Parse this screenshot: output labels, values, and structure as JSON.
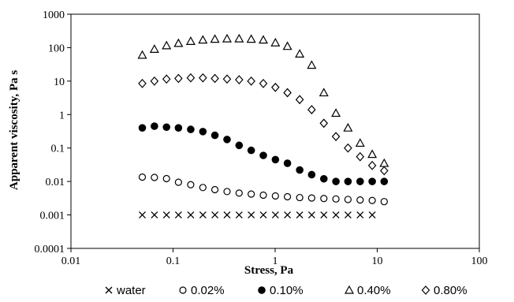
{
  "chart_data": {
    "type": "scatter",
    "title": "",
    "xlabel": "Stress, Pa",
    "ylabel": "Apparent viscosity,  Pa s",
    "xscale": "log",
    "yscale": "log",
    "xlim": [
      0.01,
      100
    ],
    "ylim": [
      0.0001,
      1000
    ],
    "x_ticks": [
      "0.01",
      "0.1",
      "1",
      "10",
      "100"
    ],
    "y_ticks": [
      "0.0001",
      "0.001",
      "0.01",
      "0.1",
      "1",
      "10",
      "100",
      "1000"
    ],
    "grid": false,
    "legend_position": "bottom",
    "series": [
      {
        "name": "water",
        "marker": "cross",
        "color": "#000000",
        "points": [
          [
            0.05,
            0.001
          ],
          [
            0.0657,
            0.001
          ],
          [
            0.0863,
            0.001
          ],
          [
            0.113,
            0.001
          ],
          [
            0.149,
            0.001
          ],
          [
            0.196,
            0.001
          ],
          [
            0.257,
            0.001
          ],
          [
            0.338,
            0.001
          ],
          [
            0.444,
            0.001
          ],
          [
            0.583,
            0.001
          ],
          [
            0.766,
            0.001
          ],
          [
            1.006,
            0.001
          ],
          [
            1.32,
            0.001
          ],
          [
            1.74,
            0.001
          ],
          [
            2.28,
            0.001
          ],
          [
            3.0,
            0.001
          ],
          [
            3.94,
            0.001
          ],
          [
            5.17,
            0.001
          ],
          [
            6.8,
            0.001
          ],
          [
            8.93,
            0.001
          ]
        ]
      },
      {
        "name": "0.02%",
        "marker": "circle-open",
        "color": "#000000",
        "points": [
          [
            0.05,
            0.0135
          ],
          [
            0.0657,
            0.0132
          ],
          [
            0.0863,
            0.0122
          ],
          [
            0.113,
            0.0095
          ],
          [
            0.149,
            0.008
          ],
          [
            0.196,
            0.0066
          ],
          [
            0.257,
            0.0057
          ],
          [
            0.338,
            0.005
          ],
          [
            0.444,
            0.0045
          ],
          [
            0.583,
            0.0042
          ],
          [
            0.766,
            0.0039
          ],
          [
            1.006,
            0.0037
          ],
          [
            1.32,
            0.0035
          ],
          [
            1.74,
            0.0033
          ],
          [
            2.28,
            0.0032
          ],
          [
            3.0,
            0.0031
          ],
          [
            3.94,
            0.003
          ],
          [
            5.17,
            0.0029
          ],
          [
            6.8,
            0.0028
          ],
          [
            8.93,
            0.0027
          ],
          [
            11.7,
            0.0025
          ]
        ]
      },
      {
        "name": "0.10%",
        "marker": "circle-filled",
        "color": "#000000",
        "points": [
          [
            0.05,
            0.4
          ],
          [
            0.0657,
            0.45
          ],
          [
            0.0863,
            0.42
          ],
          [
            0.113,
            0.4
          ],
          [
            0.149,
            0.36
          ],
          [
            0.196,
            0.31
          ],
          [
            0.257,
            0.24
          ],
          [
            0.338,
            0.18
          ],
          [
            0.444,
            0.12
          ],
          [
            0.583,
            0.085
          ],
          [
            0.766,
            0.06
          ],
          [
            1.006,
            0.045
          ],
          [
            1.32,
            0.035
          ],
          [
            1.74,
            0.022
          ],
          [
            2.28,
            0.016
          ],
          [
            3.0,
            0.012
          ],
          [
            3.94,
            0.01
          ],
          [
            5.17,
            0.01
          ],
          [
            6.8,
            0.01
          ],
          [
            8.93,
            0.01
          ],
          [
            11.7,
            0.01
          ]
        ]
      },
      {
        "name": "0.40%",
        "marker": "triangle-open",
        "color": "#000000",
        "points": [
          [
            0.05,
            60
          ],
          [
            0.0657,
            90
          ],
          [
            0.0863,
            115
          ],
          [
            0.113,
            135
          ],
          [
            0.149,
            155
          ],
          [
            0.196,
            170
          ],
          [
            0.257,
            180
          ],
          [
            0.338,
            185
          ],
          [
            0.444,
            185
          ],
          [
            0.583,
            180
          ],
          [
            0.766,
            170
          ],
          [
            1.006,
            140
          ],
          [
            1.32,
            110
          ],
          [
            1.74,
            65
          ],
          [
            2.28,
            30
          ],
          [
            3.0,
            4.5
          ],
          [
            3.94,
            1.1
          ],
          [
            5.17,
            0.4
          ],
          [
            6.8,
            0.14
          ],
          [
            8.93,
            0.065
          ],
          [
            11.7,
            0.035
          ]
        ]
      },
      {
        "name": "0.80%",
        "marker": "diamond-open",
        "color": "#000000",
        "points": [
          [
            0.05,
            8.5
          ],
          [
            0.0657,
            10
          ],
          [
            0.0863,
            11.5
          ],
          [
            0.113,
            12
          ],
          [
            0.149,
            12.5
          ],
          [
            0.196,
            12.5
          ],
          [
            0.257,
            12
          ],
          [
            0.338,
            11.5
          ],
          [
            0.444,
            11
          ],
          [
            0.583,
            10
          ],
          [
            0.766,
            8.5
          ],
          [
            1.006,
            6.5
          ],
          [
            1.32,
            4.5
          ],
          [
            1.74,
            2.8
          ],
          [
            2.28,
            1.4
          ],
          [
            3.0,
            0.55
          ],
          [
            3.94,
            0.22
          ],
          [
            5.17,
            0.1
          ],
          [
            6.8,
            0.055
          ],
          [
            8.93,
            0.03
          ],
          [
            11.7,
            0.021
          ]
        ]
      }
    ]
  }
}
